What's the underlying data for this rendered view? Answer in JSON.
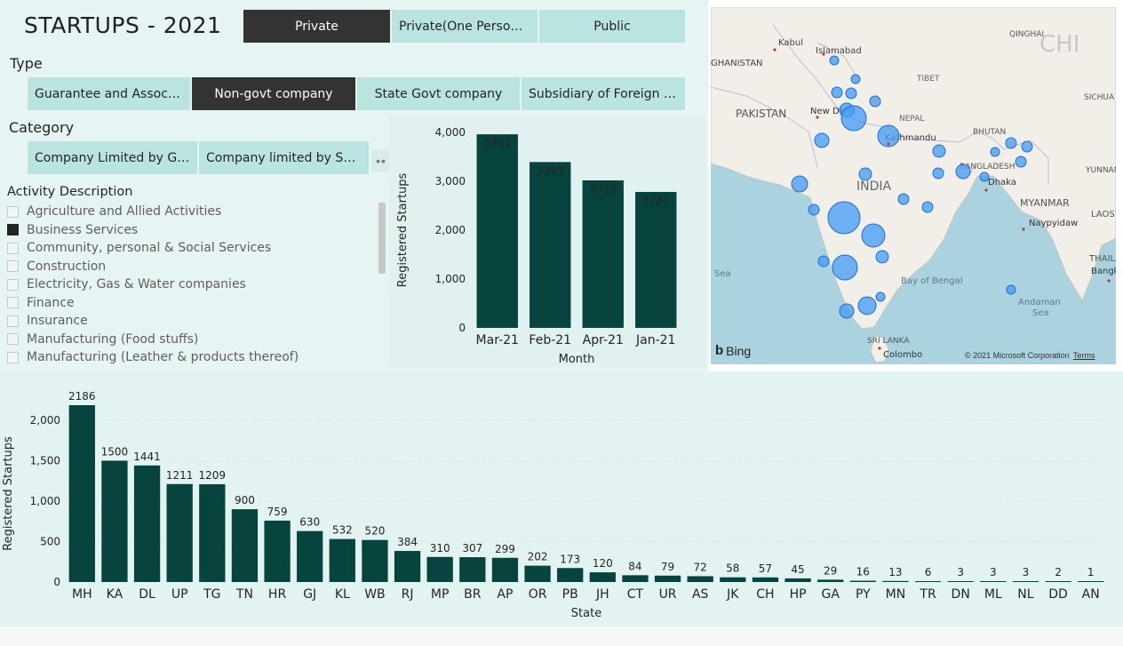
{
  "header": {
    "title": "STARTUPS - 2021"
  },
  "company_class": {
    "options": [
      "Private",
      "Private(One Person C...",
      "Public"
    ],
    "selected": 0
  },
  "type_slicer": {
    "label": "Type",
    "options": [
      "Guarantee and Associati...",
      "Non-govt company",
      "State Govt company",
      "Subsidiary of Foreign Co..."
    ],
    "selected": 1
  },
  "category_slicer": {
    "label": "Category",
    "options": [
      "Company Limited by Gua...",
      "Company limited by Shares"
    ],
    "more": "••"
  },
  "activity_slicer": {
    "label": "Activity Description",
    "items": [
      {
        "label": "Agriculture and Allied Activities",
        "checked": false
      },
      {
        "label": "Business Services",
        "checked": true
      },
      {
        "label": "Community, personal & Social Services",
        "checked": false
      },
      {
        "label": "Construction",
        "checked": false
      },
      {
        "label": "Electricity, Gas & Water companies",
        "checked": false
      },
      {
        "label": "Finance",
        "checked": false
      },
      {
        "label": "Insurance",
        "checked": false
      },
      {
        "label": "Manufacturing (Food stuffs)",
        "checked": false
      },
      {
        "label": "Manufacturing (Leather & products thereof)",
        "checked": false
      }
    ]
  },
  "map": {
    "labels": {
      "kabul": "Kabul",
      "islamabad": "Islamabad",
      "qinghai": "QINGHAI",
      "china": "CHI",
      "afghanistan": "GHANISTAN",
      "tibet": "TIBET",
      "sichuan": "SICHUA",
      "pakistan": "PAKISTAN",
      "newdelhi": "New Delhi",
      "nepal": "NEPAL",
      "kathmandu": "Kathmandu",
      "bhutan": "BHUTAN",
      "bangladesh": "BANGLADESH",
      "dhaka": "Dhaka",
      "yunnan": "YUNNAN",
      "india": "INDIA",
      "myanmar": "MYANMAR",
      "naypyidaw": "Naypyidaw",
      "laos": "LAOS",
      "sea": "Sea",
      "bay": "Bay of Bengal",
      "thailand": "THAILAN",
      "bangkok": "Bangk",
      "andaman1": "Andaman",
      "andaman2": "Sea",
      "srilanka": "SRI LANKA",
      "colombo": "Colombo"
    },
    "bing": "Bing",
    "copyright": "© 2021 Microsoft Corporation",
    "terms": "Terms",
    "bubble_color": "#4a9ff5"
  },
  "chart_data": [
    {
      "type": "bar",
      "categories": [
        "Mar-21",
        "Feb-21",
        "Apr-21",
        "Jan-21"
      ],
      "values": [
        3961,
        3393,
        3018,
        2782
      ],
      "xlabel": "Month",
      "ylabel": "Registered Startups",
      "ylim": [
        0,
        4000
      ],
      "yticks": [
        "0",
        "1,000",
        "2,000",
        "3,000",
        "4,000"
      ],
      "bar_color": "#074440"
    },
    {
      "type": "bar",
      "categories": [
        "MH",
        "KA",
        "DL",
        "UP",
        "TG",
        "TN",
        "HR",
        "GJ",
        "KL",
        "WB",
        "RJ",
        "MP",
        "BR",
        "AP",
        "OR",
        "PB",
        "JH",
        "CT",
        "UR",
        "AS",
        "JK",
        "CH",
        "HP",
        "GA",
        "PY",
        "MN",
        "TR",
        "DN",
        "ML",
        "NL",
        "DD",
        "AN"
      ],
      "values": [
        2186,
        1500,
        1441,
        1211,
        1209,
        900,
        759,
        630,
        532,
        520,
        384,
        310,
        307,
        299,
        202,
        173,
        120,
        84,
        79,
        72,
        58,
        57,
        45,
        29,
        16,
        13,
        6,
        3,
        3,
        3,
        2,
        1
      ],
      "xlabel": "State",
      "ylabel": "Registered Startups",
      "ylim": [
        0,
        2186
      ],
      "yticks": [
        "0",
        "500",
        "1,000",
        "1,500",
        "2,000"
      ],
      "bar_color": "#074440"
    }
  ]
}
